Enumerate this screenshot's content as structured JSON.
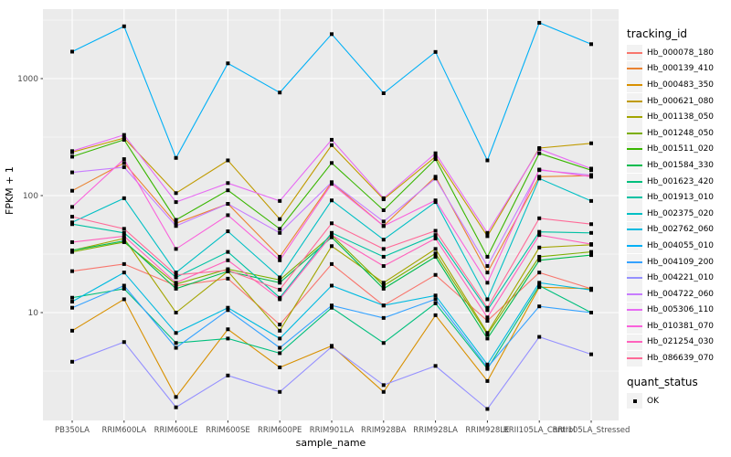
{
  "chart_data": {
    "type": "line",
    "title": "",
    "xlabel": "sample_name",
    "ylabel": "FPKM + 1",
    "y_scale": "log10",
    "y_ticks": [
      10,
      100,
      1000
    ],
    "y_minor_ticks": [
      3.162,
      31.62,
      316.2,
      3162
    ],
    "ylim": [
      1.2,
      4000
    ],
    "grid": true,
    "panel_bg": "#EBEBEB",
    "grid_color": "#FFFFFF",
    "tick_label_color": "#4D4D4D",
    "point_color": "#000000",
    "legend": {
      "tracking_title": "tracking_id",
      "quant_title": "quant_status",
      "quant_label": "OK"
    },
    "categories": [
      "PB350LA",
      "RRIM600LA",
      "RRIM600LE",
      "RRIM600SE",
      "RRIM600PE",
      "RRIM901LA",
      "RRIM928BA",
      "RRIM928LA",
      "RRIM928LE",
      "RRII105LA_Control",
      "RRII105LA_Stressed"
    ],
    "series": [
      {
        "name": "Hb_000078_180",
        "color": "#F8766D",
        "values": [
          22.6,
          26,
          17,
          19.5,
          7.9,
          26,
          11.5,
          21,
          8.5,
          22,
          16
        ]
      },
      {
        "name": "Hb_000139_410",
        "color": "#EA8331",
        "values": [
          110,
          190,
          58,
          85,
          30,
          130,
          55,
          145,
          22,
          145,
          148
        ]
      },
      {
        "name": "Hb_000483_350",
        "color": "#D89000",
        "values": [
          7,
          13,
          1.9,
          7.2,
          3.4,
          5.2,
          2.1,
          9.5,
          2.6,
          16.5,
          16
        ]
      },
      {
        "name": "Hb_000621_080",
        "color": "#C09B00",
        "values": [
          235,
          310,
          105,
          200,
          63,
          270,
          93,
          215,
          45,
          255,
          280
        ]
      },
      {
        "name": "Hb_001138_050",
        "color": "#A3A500",
        "values": [
          34,
          43,
          10,
          22.5,
          7,
          37,
          18,
          35,
          6.7,
          36,
          38
        ]
      },
      {
        "name": "Hb_001248_050",
        "color": "#7CAE00",
        "values": [
          33,
          40,
          17.5,
          23.5,
          19,
          46,
          17,
          32,
          6.5,
          30,
          33
        ]
      },
      {
        "name": "Hb_001511_020",
        "color": "#39B600",
        "values": [
          215,
          300,
          62,
          111,
          52,
          190,
          75,
          205,
          30,
          230,
          165
        ]
      },
      {
        "name": "Hb_001584_330",
        "color": "#00BB4E",
        "values": [
          34,
          41,
          16,
          22.5,
          18,
          44,
          16,
          30,
          6,
          28,
          31
        ]
      },
      {
        "name": "Hb_001623_420",
        "color": "#00BF7D",
        "values": [
          13.4,
          16,
          5.5,
          6,
          4.5,
          11,
          5.5,
          12,
          3.3,
          17,
          10
        ]
      },
      {
        "name": "Hb_001913_010",
        "color": "#00C1A3",
        "values": [
          57,
          48,
          20,
          33,
          13.4,
          48,
          30,
          46,
          10.5,
          49,
          48
        ]
      },
      {
        "name": "Hb_002375_020",
        "color": "#00BFC4",
        "values": [
          59,
          95,
          22,
          49.5,
          20,
          91,
          42,
          88,
          13,
          140,
          90
        ]
      },
      {
        "name": "Hb_002762_060",
        "color": "#00BAE0",
        "values": [
          12.4,
          22,
          6.7,
          11,
          6,
          17,
          11.5,
          14,
          3.6,
          18,
          15.6
        ]
      },
      {
        "name": "Hb_004055_010",
        "color": "#00B0F6",
        "values": [
          1700,
          2800,
          210,
          1350,
          760,
          2400,
          750,
          1690,
          200,
          3000,
          1970
        ]
      },
      {
        "name": "Hb_004109_200",
        "color": "#35A2FF",
        "values": [
          11,
          17,
          5,
          10.5,
          5,
          11.5,
          9,
          13,
          3.4,
          11.3,
          10
        ]
      },
      {
        "name": "Hb_004221_010",
        "color": "#9590FF",
        "values": [
          3.8,
          5.6,
          1.55,
          2.9,
          2.1,
          5.1,
          2.4,
          3.5,
          1.5,
          6.2,
          4.4
        ]
      },
      {
        "name": "Hb_004722_060",
        "color": "#C77CFF",
        "values": [
          158,
          175,
          55,
          85,
          48,
          130,
          60,
          140,
          25,
          165,
          150
        ]
      },
      {
        "name": "Hb_005306_110",
        "color": "#E76BF3",
        "values": [
          240,
          330,
          88,
          128,
          90,
          300,
          95,
          230,
          48,
          250,
          170
        ]
      },
      {
        "name": "Hb_010381_070",
        "color": "#FA62DB",
        "values": [
          80,
          205,
          35,
          68,
          28,
          126,
          55,
          91,
          18,
          167,
          145
        ]
      },
      {
        "name": "Hb_021254_030",
        "color": "#FF62BC",
        "values": [
          40,
          45,
          18,
          28,
          13,
          46,
          25,
          43,
          9.1,
          46,
          38.5
        ]
      },
      {
        "name": "Hb_086639_070",
        "color": "#FF6A98",
        "values": [
          66,
          52,
          21,
          23,
          15.7,
          58,
          35,
          50,
          11,
          64,
          57
        ]
      }
    ]
  }
}
